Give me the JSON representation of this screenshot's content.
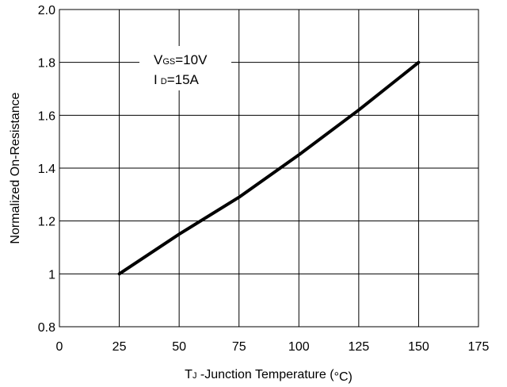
{
  "chart_data": {
    "type": "line",
    "x_ticks": [
      "0",
      "25",
      "50",
      "75",
      "100",
      "125",
      "150",
      "175"
    ],
    "y_ticks": [
      "0.8",
      "1",
      "1.2",
      "1.4",
      "1.6",
      "1.8",
      "2.0"
    ],
    "xlim": [
      0,
      175
    ],
    "ylim": [
      0.8,
      2.0
    ],
    "grid": true,
    "xlabel": {
      "main": "T",
      "sub": "J",
      "rest": " -Junction Temperature (",
      "unit": "°C",
      "close": ")"
    },
    "ylabel": "Normalized On-Resistance",
    "annotations": [
      {
        "main": "V",
        "sub": "GS",
        "rest": "=10V"
      },
      {
        "main": "I",
        "sub": "D",
        "rest": "=15A"
      }
    ],
    "series": [
      {
        "x": [
          25,
          50,
          75,
          100,
          125,
          150
        ],
        "y": [
          1.0,
          1.15,
          1.29,
          1.45,
          1.62,
          1.8
        ]
      }
    ],
    "colors": {
      "line": "#000000",
      "grid": "#000000"
    }
  }
}
